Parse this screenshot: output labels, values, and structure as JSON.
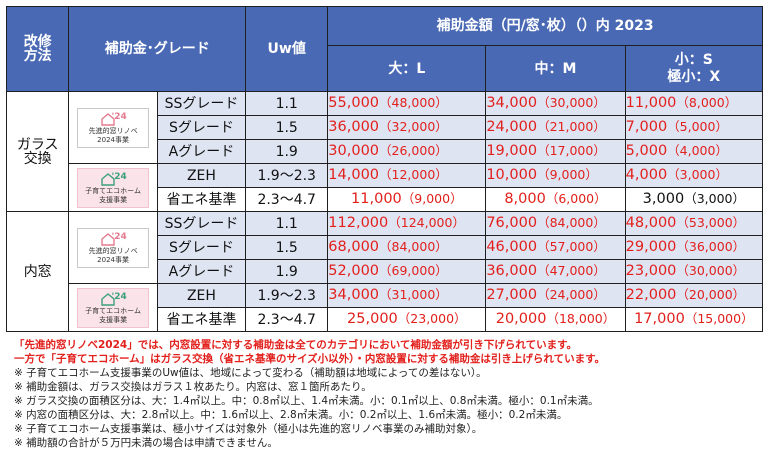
{
  "header": {
    "method": "改修\n方法",
    "subsidy_grade": "補助金･グレード",
    "uw": "Uw値",
    "amount_title": "補助金額（円/窓･枚）（）内 2023",
    "size_l": "大：L",
    "size_m": "中：M",
    "size_s_line1": "小：S",
    "size_s_line2": "極小：X"
  },
  "logos": {
    "renovation_number": "'24",
    "renovation_caption1": "先進的窓リノベ",
    "renovation_caption2": "2024事業",
    "kosodate_number": "'24",
    "kosodate_caption1": "子育てエコホーム",
    "kosodate_caption2": "支援事業"
  },
  "sections": [
    {
      "method_line1": "ガラス",
      "method_line2": "交換",
      "rows": [
        {
          "grade": "SSグレード",
          "uw": "1.1",
          "l": "55,000",
          "l_prev": "（48,000）",
          "m": "34,000",
          "m_prev": "（30,000）",
          "s": "11,000",
          "s_prev": "（8,000）",
          "red": true
        },
        {
          "grade": "Sグレード",
          "uw": "1.5",
          "l": "36,000",
          "l_prev": "（32,000）",
          "m": "24,000",
          "m_prev": "（21,000）",
          "s": "7,000",
          "s_prev": "（5,000）",
          "red": true
        },
        {
          "grade": "Aグレード",
          "uw": "1.9",
          "l": "30,000",
          "l_prev": "（26,000）",
          "m": "19,000",
          "m_prev": "（17,000）",
          "s": "5,000",
          "s_prev": "（4,000）",
          "red": true
        },
        {
          "grade": "ZEH",
          "uw": "1.9～2.3",
          "l": "14,000",
          "l_prev": "（12,000）",
          "m": "10,000",
          "m_prev": "（9,000）",
          "s": "4,000",
          "s_prev": "（3,000）",
          "red": true
        },
        {
          "grade": "省エネ基準",
          "uw": "2.3～4.7",
          "l": "11,000",
          "l_prev": "（9,000）",
          "m": "8,000",
          "m_prev": "（6,000）",
          "s": "3,000",
          "s_prev": "（3,000）",
          "red": true,
          "s_black": true
        }
      ]
    },
    {
      "method_line1": "内窓",
      "method_line2": "",
      "rows": [
        {
          "grade": "SSグレード",
          "uw": "1.1",
          "l": "112,000",
          "l_prev": "（124,000）",
          "m": "76,000",
          "m_prev": "（84,000）",
          "s": "48,000",
          "s_prev": "（53,000）",
          "red": true
        },
        {
          "grade": "Sグレード",
          "uw": "1.5",
          "l": "68,000",
          "l_prev": "（84,000）",
          "m": "46,000",
          "m_prev": "（57,000）",
          "s": "29,000",
          "s_prev": "（36,000）",
          "red": true
        },
        {
          "grade": "Aグレード",
          "uw": "1.9",
          "l": "52,000",
          "l_prev": "（69,000）",
          "m": "36,000",
          "m_prev": "（47,000）",
          "s": "23,000",
          "s_prev": "（30,000）",
          "red": true
        },
        {
          "grade": "ZEH",
          "uw": "1.9～2.3",
          "l": "34,000",
          "l_prev": "（31,000）",
          "m": "27,000",
          "m_prev": "（24,000）",
          "s": "22,000",
          "s_prev": "（20,000）",
          "red": true
        },
        {
          "grade": "省エネ基準",
          "uw": "2.3～4.7",
          "l": "25,000",
          "l_prev": "（23,000）",
          "m": "20,000",
          "m_prev": "（18,000）",
          "s": "17,000",
          "s_prev": "（15,000）",
          "red": true
        }
      ]
    }
  ],
  "notes": {
    "red1": "「先進的窓リノベ2024」では、内窓設置に対する補助金は全てのカテゴリにおいて補助金額が引き下げられています。",
    "red2": "一方で「子育てエコホーム」はガラス交換（省エネ基準のサイズ小以外）・内窓設置に対する補助金は引き上げられています。",
    "n1": "※ 子育てエコホーム支援事業のUw値は、地域によって変わる（補助額は地域によっての差はない）。",
    "n2": "※ 補助金額は、ガラス交換はガラス１枚あたり。内窓は、窓１箇所あたり。",
    "n3": "※ ガラス交換の面積区分は、大：1.4㎡以上。中：0.8㎡以上、1.4㎡未満。小：0.1㎡以上、0.8㎡未満。極小：0.1㎡未満。",
    "n4": "※ 内窓の面積区分は、大：2.8㎡以上。中：1.6㎡以上、2.8㎡未満。小：0.2㎡以上、1.6㎡未満。極小：0.2㎡未満。",
    "n5": "※ 子育てエコホーム支援事業は、極小サイズは対象外（極小は先進的窓リノベ事業のみ補助対象）。",
    "n6": "※ 補助額の合計が５万円未満の場合は申請できません。"
  },
  "colors": {
    "header": "#4a69b4",
    "row_tint": "#dfe4f3",
    "red": "#e2201c"
  }
}
